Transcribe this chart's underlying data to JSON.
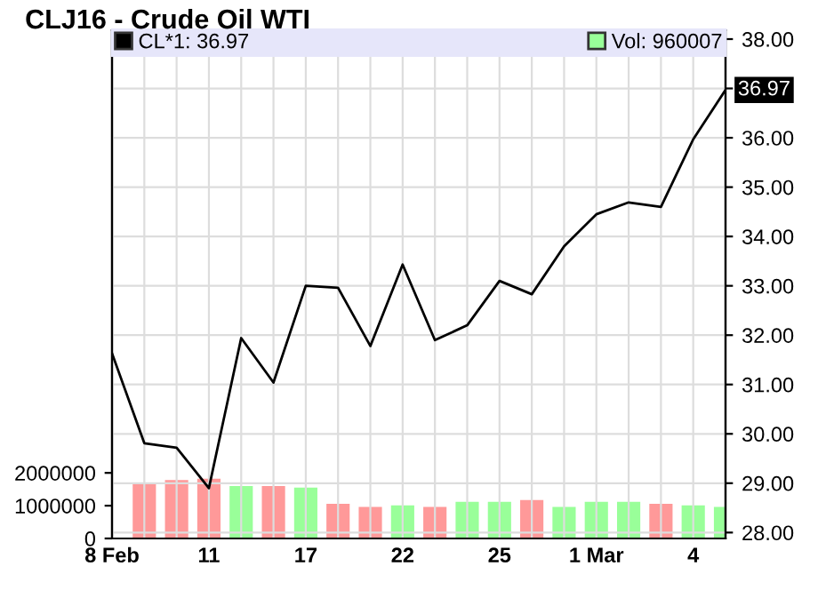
{
  "chart_data": {
    "type": "line",
    "title": "CLJ16 - Crude Oil WTI",
    "categories": [
      "8 Feb",
      null,
      null,
      "11",
      null,
      null,
      "17",
      null,
      null,
      "22",
      null,
      null,
      "25",
      null,
      null,
      "1 Mar",
      null,
      null,
      "4",
      null
    ],
    "series": [
      {
        "name": "Vol: 960007",
        "type": "bar",
        "color": "#99ff99",
        "colors": [
          "#99ff99",
          "#ff9999",
          "#ff9999",
          "#ff9999",
          "#99ff99",
          "#ff9999",
          "#99ff99",
          "#ff9999",
          "#ff9999",
          "#99ff99",
          "#ff9999",
          "#99ff99",
          "#99ff99",
          "#ff9999",
          "#99ff99",
          "#99ff99",
          "#99ff99",
          "#ff9999",
          "#99ff99",
          "#99ff99"
        ],
        "values": [
          null,
          1680000,
          1780000,
          1820000,
          1600000,
          1600000,
          1550000,
          1060000,
          960000,
          1010000,
          960000,
          1120000,
          1120000,
          1170000,
          960000,
          1120000,
          1120000,
          1060000,
          1010000,
          960007
        ]
      },
      {
        "name": "CL*1: 36.97",
        "axis": "y2",
        "color": "#000000",
        "values": [
          31.63,
          29.81,
          29.72,
          28.9,
          31.94,
          31.04,
          33.0,
          32.96,
          31.78,
          33.43,
          31.9,
          32.2,
          33.1,
          32.83,
          33.8,
          34.45,
          34.69,
          34.6,
          35.97,
          36.97
        ]
      }
    ],
    "ylim": [
      0,
      15500000
    ],
    "yticks": [
      0,
      1000000,
      2000000
    ],
    "y2lim": [
      27.88,
      38.18
    ],
    "y2ticks": [
      {
        "value": 28,
        "label": "28.00"
      },
      {
        "value": 29,
        "label": "29.00"
      },
      {
        "value": 30,
        "label": "30.00"
      },
      {
        "value": 31,
        "label": "31.00"
      },
      {
        "value": 32,
        "label": "32.00"
      },
      {
        "value": 33,
        "label": "33.00"
      },
      {
        "value": 34,
        "label": "34.00"
      },
      {
        "value": 35,
        "label": "35.00"
      },
      {
        "value": 36,
        "label": "36.00"
      },
      {
        "value": 37,
        "label": {
          "value": null
        }
      },
      {
        "value": 38,
        "label": "38.00"
      }
    ],
    "annotations": [
      "36.97"
    ],
    "grid": true,
    "legend": "top",
    "marker": "none",
    "line_style": "solid"
  }
}
